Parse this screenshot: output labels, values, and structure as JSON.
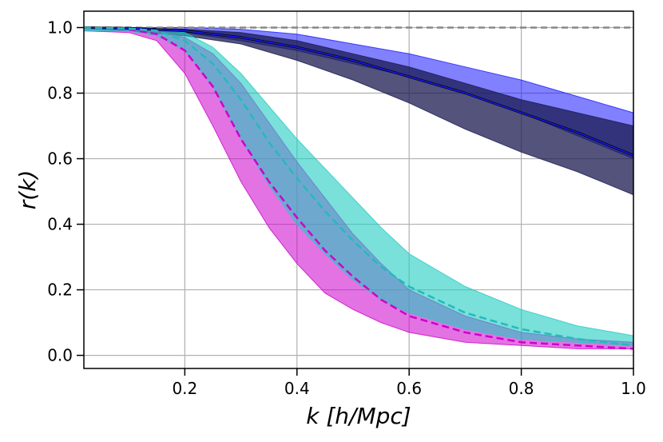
{
  "chart_data": {
    "type": "line",
    "title": "",
    "xlabel": "k [h/Mpc]",
    "ylabel": "r(k)",
    "xlim": [
      0.02,
      1.0
    ],
    "ylim": [
      -0.04,
      1.05
    ],
    "xticks": [
      0.2,
      0.4,
      0.6,
      0.8,
      1.0
    ],
    "xtick_labels": [
      "0.2",
      "0.4",
      "0.6",
      "0.8",
      "1.0"
    ],
    "yticks": [
      0.0,
      0.2,
      0.4,
      0.6,
      0.8,
      1.0
    ],
    "ytick_labels": [
      "0.0",
      "0.2",
      "0.4",
      "0.6",
      "0.8",
      "1.0"
    ],
    "grid": true,
    "reference_line": {
      "y": 1.0,
      "style": "dashed",
      "color": "#888888"
    },
    "bands": [
      {
        "color": "#1a1aff",
        "opacity": 0.55,
        "x": [
          0.02,
          0.1,
          0.2,
          0.3,
          0.4,
          0.5,
          0.6,
          0.7,
          0.8,
          0.9,
          1.0
        ],
        "lower": [
          0.998,
          0.995,
          0.985,
          0.96,
          0.93,
          0.89,
          0.85,
          0.8,
          0.74,
          0.67,
          0.6
        ],
        "upper": [
          1.0,
          1.0,
          1.0,
          0.995,
          0.98,
          0.95,
          0.92,
          0.88,
          0.84,
          0.79,
          0.74
        ]
      },
      {
        "color": "#1a1a50",
        "opacity": 0.75,
        "x": [
          0.02,
          0.1,
          0.2,
          0.3,
          0.4,
          0.5,
          0.6,
          0.7,
          0.8,
          0.9,
          1.0
        ],
        "lower": [
          0.998,
          0.99,
          0.975,
          0.95,
          0.9,
          0.84,
          0.77,
          0.69,
          0.62,
          0.56,
          0.49
        ],
        "upper": [
          1.0,
          1.0,
          0.995,
          0.985,
          0.96,
          0.92,
          0.88,
          0.83,
          0.78,
          0.74,
          0.7
        ]
      },
      {
        "color": "#cc00cc",
        "opacity": 0.55,
        "x": [
          0.02,
          0.1,
          0.15,
          0.2,
          0.25,
          0.3,
          0.35,
          0.4,
          0.45,
          0.5,
          0.55,
          0.6,
          0.7,
          0.8,
          0.9,
          1.0
        ],
        "lower": [
          0.99,
          0.985,
          0.96,
          0.86,
          0.7,
          0.53,
          0.39,
          0.28,
          0.19,
          0.14,
          0.1,
          0.07,
          0.04,
          0.03,
          0.02,
          0.02
        ],
        "upper": [
          1.0,
          1.0,
          0.99,
          0.97,
          0.92,
          0.83,
          0.71,
          0.59,
          0.48,
          0.37,
          0.28,
          0.2,
          0.12,
          0.07,
          0.05,
          0.04
        ]
      },
      {
        "color": "#22ccc2",
        "opacity": 0.6,
        "x": [
          0.02,
          0.1,
          0.15,
          0.2,
          0.25,
          0.3,
          0.35,
          0.4,
          0.45,
          0.5,
          0.55,
          0.6,
          0.7,
          0.8,
          0.9,
          1.0
        ],
        "lower": [
          0.99,
          0.99,
          0.975,
          0.93,
          0.82,
          0.66,
          0.52,
          0.4,
          0.31,
          0.23,
          0.17,
          0.13,
          0.08,
          0.05,
          0.04,
          0.03
        ],
        "upper": [
          1.0,
          1.0,
          0.995,
          0.985,
          0.94,
          0.86,
          0.76,
          0.66,
          0.57,
          0.48,
          0.39,
          0.31,
          0.21,
          0.14,
          0.09,
          0.06
        ]
      }
    ],
    "series": [
      {
        "color": "#000000",
        "style": "solid",
        "width": 3,
        "x": [
          0.02,
          0.1,
          0.2,
          0.3,
          0.4,
          0.5,
          0.6,
          0.7,
          0.8,
          0.9,
          1.0
        ],
        "y": [
          1.0,
          0.998,
          0.99,
          0.97,
          0.94,
          0.9,
          0.85,
          0.8,
          0.74,
          0.68,
          0.61
        ]
      },
      {
        "color": "#1a1aff",
        "style": "solid",
        "width": 1.5,
        "x": [
          0.02,
          0.1,
          0.2,
          0.3,
          0.4,
          0.5,
          0.6,
          0.7,
          0.8,
          0.9,
          1.0
        ],
        "y": [
          1.0,
          0.998,
          0.99,
          0.97,
          0.94,
          0.9,
          0.85,
          0.8,
          0.74,
          0.68,
          0.61
        ]
      },
      {
        "color": "#cc00cc",
        "style": "dashed",
        "width": 2.5,
        "x": [
          0.02,
          0.1,
          0.15,
          0.2,
          0.25,
          0.3,
          0.35,
          0.4,
          0.45,
          0.5,
          0.55,
          0.6,
          0.7,
          0.8,
          0.9,
          1.0
        ],
        "y": [
          1.0,
          0.995,
          0.98,
          0.93,
          0.82,
          0.66,
          0.53,
          0.42,
          0.32,
          0.24,
          0.17,
          0.12,
          0.07,
          0.04,
          0.03,
          0.02
        ]
      },
      {
        "color": "#22bbbb",
        "style": "dashed",
        "width": 2.5,
        "x": [
          0.02,
          0.1,
          0.15,
          0.2,
          0.25,
          0.3,
          0.35,
          0.4,
          0.45,
          0.5,
          0.55,
          0.6,
          0.7,
          0.8,
          0.9,
          1.0
        ],
        "y": [
          1.0,
          0.997,
          0.99,
          0.96,
          0.89,
          0.78,
          0.65,
          0.54,
          0.44,
          0.35,
          0.27,
          0.21,
          0.13,
          0.08,
          0.05,
          0.03
        ]
      }
    ]
  }
}
